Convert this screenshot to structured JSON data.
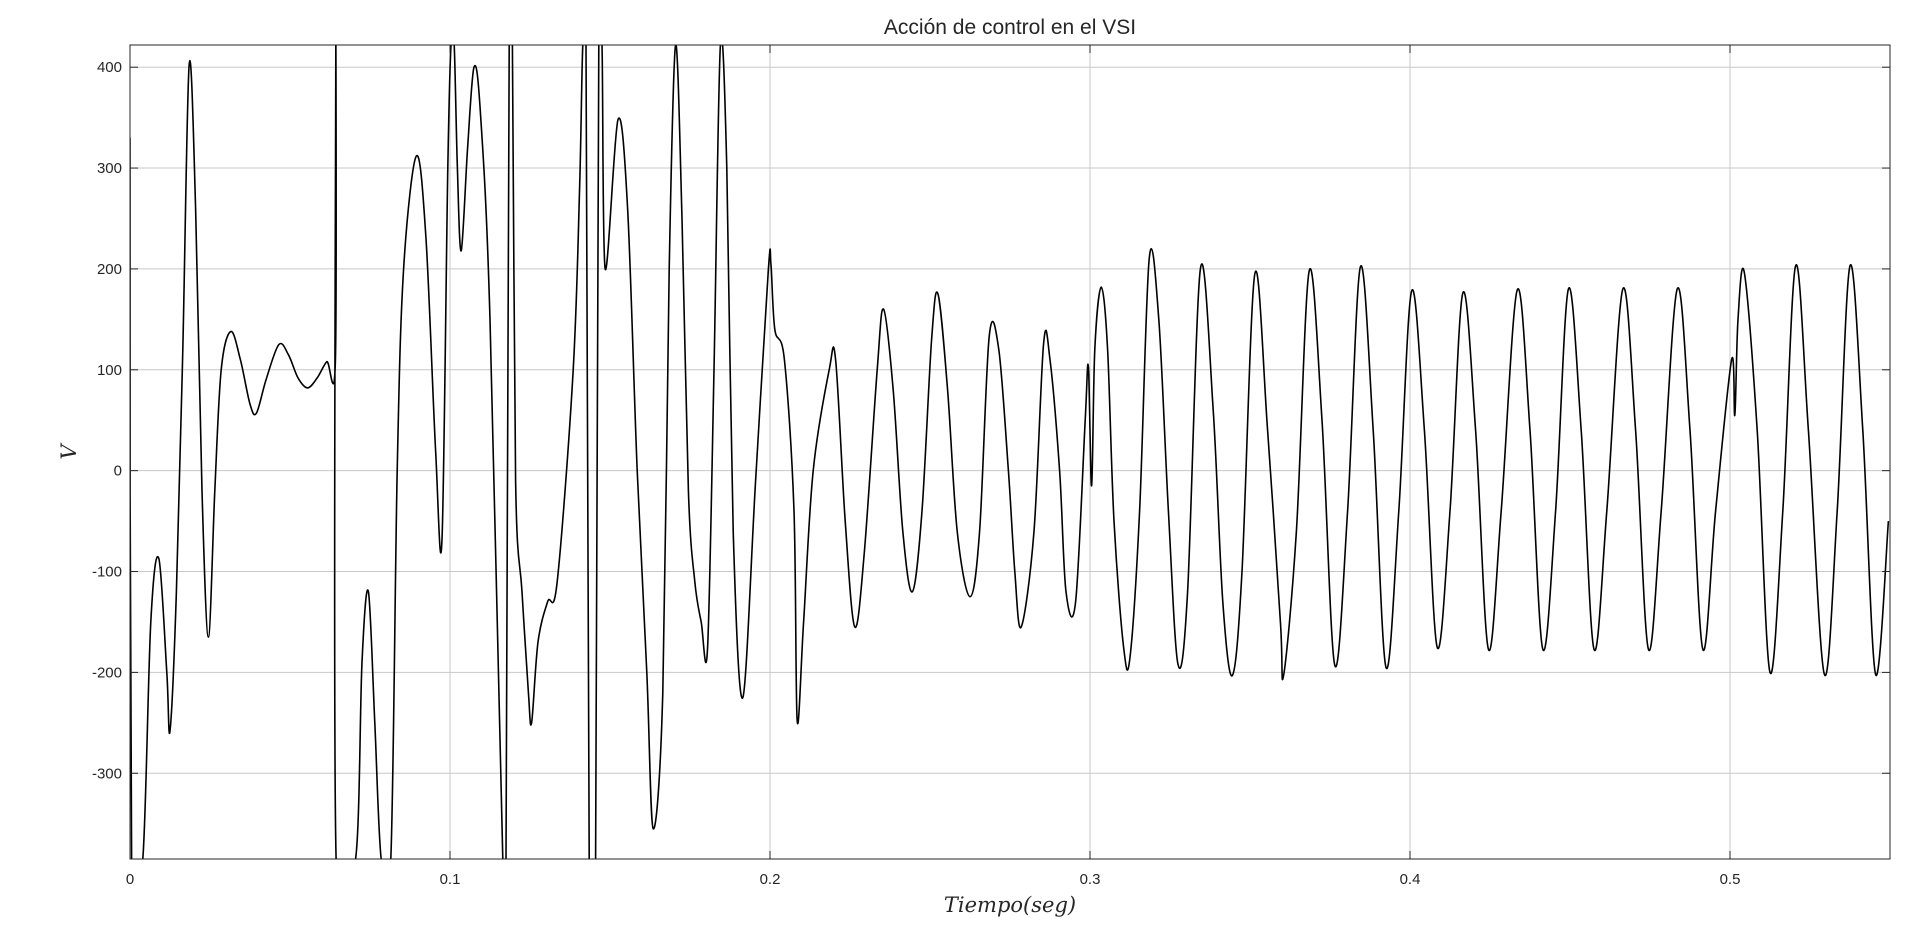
{
  "chart_data": {
    "type": "line",
    "title": "Acción de control en el VSI",
    "xlabel": "Tiempo(seg)",
    "ylabel": "V",
    "xlim": [
      0,
      0.55
    ],
    "ylim": [
      -385,
      422
    ],
    "grid": true,
    "xticks": [
      0,
      0.1,
      0.2,
      0.3,
      0.4,
      0.5
    ],
    "xtick_labels": [
      "0",
      "0.1",
      "0.2",
      "0.3",
      "0.4",
      "0.5"
    ],
    "yticks": [
      -300,
      -200,
      -100,
      0,
      100,
      200,
      300,
      400
    ],
    "ytick_labels": [
      "-300",
      "-200",
      "-100",
      "0",
      "100",
      "200",
      "300",
      "400"
    ],
    "line_color": "#000000",
    "grid_color": "#c8c8c8",
    "series": [
      {
        "points": [
          [
            0,
            330
          ],
          [
            0.0005,
            -385
          ],
          [
            0.004,
            -385
          ],
          [
            0.0065,
            -150
          ],
          [
            0.009,
            -87
          ],
          [
            0.0115,
            -200
          ],
          [
            0.0125,
            -258
          ],
          [
            0.0145,
            -120
          ],
          [
            0.0165,
            120
          ],
          [
            0.0185,
            403
          ],
          [
            0.0205,
            260
          ],
          [
            0.0225,
            -20
          ],
          [
            0.0245,
            -165
          ],
          [
            0.0265,
            -20
          ],
          [
            0.0285,
            100
          ],
          [
            0.0315,
            138
          ],
          [
            0.0345,
            110
          ],
          [
            0.0375,
            66
          ],
          [
            0.0395,
            57
          ],
          [
            0.0425,
            90
          ],
          [
            0.0465,
            125
          ],
          [
            0.0495,
            115
          ],
          [
            0.0525,
            92
          ],
          [
            0.0555,
            82
          ],
          [
            0.0585,
            92
          ],
          [
            0.0615,
            108
          ],
          [
            0.0642,
            109
          ],
          [
            0.0643,
            422
          ],
          [
            0.0644,
            -385
          ],
          [
            0.0705,
            -385
          ],
          [
            0.0725,
            -190
          ],
          [
            0.0745,
            -120
          ],
          [
            0.0765,
            -250
          ],
          [
            0.0785,
            -385
          ],
          [
            0.0815,
            -385
          ],
          [
            0.0835,
            0
          ],
          [
            0.0855,
            200
          ],
          [
            0.0895,
            312
          ],
          [
            0.0925,
            230
          ],
          [
            0.0955,
            20
          ],
          [
            0.0975,
            -68
          ],
          [
            0.0993,
            300
          ],
          [
            0.1003,
            422
          ],
          [
            0.1013,
            422
          ],
          [
            0.1023,
            300
          ],
          [
            0.1035,
            218
          ],
          [
            0.1055,
            320
          ],
          [
            0.1075,
            400
          ],
          [
            0.1095,
            355
          ],
          [
            0.1125,
            150
          ],
          [
            0.1165,
            -385
          ],
          [
            0.1175,
            -385
          ],
          [
            0.1185,
            422
          ],
          [
            0.1195,
            422
          ],
          [
            0.1205,
            -10
          ],
          [
            0.1225,
            -120
          ],
          [
            0.1245,
            -220
          ],
          [
            0.1255,
            -250
          ],
          [
            0.1275,
            -170
          ],
          [
            0.1305,
            -130
          ],
          [
            0.1335,
            -110
          ],
          [
            0.1385,
            100
          ],
          [
            0.1405,
            280
          ],
          [
            0.1415,
            422
          ],
          [
            0.1425,
            422
          ],
          [
            0.1435,
            -385
          ],
          [
            0.1445,
            -385
          ],
          [
            0.1455,
            -385
          ],
          [
            0.1465,
            422
          ],
          [
            0.1475,
            422
          ],
          [
            0.1485,
            200
          ],
          [
            0.1525,
            348
          ],
          [
            0.1555,
            260
          ],
          [
            0.1585,
            0
          ],
          [
            0.1615,
            -200
          ],
          [
            0.1635,
            -355
          ],
          [
            0.1665,
            -220
          ],
          [
            0.1685,
            200
          ],
          [
            0.1705,
            422
          ],
          [
            0.1725,
            250
          ],
          [
            0.1745,
            -20
          ],
          [
            0.1765,
            -110
          ],
          [
            0.1785,
            -150
          ],
          [
            0.1805,
            -175
          ],
          [
            0.1825,
            100
          ],
          [
            0.1845,
            422
          ],
          [
            0.1865,
            300
          ],
          [
            0.1885,
            -60
          ],
          [
            0.1915,
            -225
          ],
          [
            0.1955,
            -10
          ],
          [
            0.1995,
            200
          ],
          [
            0.2003,
            204
          ],
          [
            0.2015,
            140
          ],
          [
            0.2045,
            110
          ],
          [
            0.2075,
            -40
          ],
          [
            0.2085,
            -248
          ],
          [
            0.2105,
            -150
          ],
          [
            0.2135,
            0
          ],
          [
            0.2185,
            100
          ],
          [
            0.2205,
            110
          ],
          [
            0.2235,
            -50
          ],
          [
            0.2265,
            -155
          ],
          [
            0.2295,
            -80
          ],
          [
            0.2335,
            100
          ],
          [
            0.2355,
            160
          ],
          [
            0.2385,
            80
          ],
          [
            0.2415,
            -60
          ],
          [
            0.2445,
            -120
          ],
          [
            0.2475,
            -40
          ],
          [
            0.2505,
            130
          ],
          [
            0.2525,
            175
          ],
          [
            0.2555,
            80
          ],
          [
            0.2585,
            -60
          ],
          [
            0.2625,
            -125
          ],
          [
            0.2655,
            -60
          ],
          [
            0.2685,
            133
          ],
          [
            0.2715,
            120
          ],
          [
            0.2745,
            0
          ],
          [
            0.2765,
            -100
          ],
          [
            0.2785,
            -155
          ],
          [
            0.2825,
            -60
          ],
          [
            0.2855,
            126
          ],
          [
            0.2875,
            110
          ],
          [
            0.2905,
            0
          ],
          [
            0.2925,
            -120
          ],
          [
            0.2955,
            -130
          ],
          [
            0.2985,
            50
          ],
          [
            0.2995,
            103
          ],
          [
            0.3005,
            -15
          ],
          [
            0.3015,
            120
          ],
          [
            0.3035,
            182
          ],
          [
            0.3055,
            120
          ],
          [
            0.3075,
            -50
          ],
          [
            0.3105,
            -175
          ],
          [
            0.3125,
            -185
          ],
          [
            0.3155,
            -40
          ],
          [
            0.3185,
            210
          ],
          [
            0.3215,
            150
          ],
          [
            0.3245,
            -40
          ],
          [
            0.3275,
            -192
          ],
          [
            0.3305,
            -120
          ],
          [
            0.3345,
            200
          ],
          [
            0.3385,
            60
          ],
          [
            0.3415,
            -130
          ],
          [
            0.3445,
            -203
          ],
          [
            0.3475,
            -100
          ],
          [
            0.3515,
            195
          ],
          [
            0.3555,
            40
          ],
          [
            0.3595,
            -150
          ],
          [
            0.3605,
            -203
          ],
          [
            0.3645,
            -60
          ],
          [
            0.3685,
            198
          ],
          [
            0.3725,
            50
          ],
          [
            0.3765,
            -193
          ],
          [
            0.3805,
            -40
          ],
          [
            0.3845,
            202
          ],
          [
            0.3885,
            40
          ],
          [
            0.3925,
            -195
          ],
          [
            0.3965,
            -40
          ],
          [
            0.4005,
            178
          ],
          [
            0.4045,
            40
          ],
          [
            0.4085,
            -175
          ],
          [
            0.4125,
            -40
          ],
          [
            0.4165,
            176
          ],
          [
            0.4205,
            40
          ],
          [
            0.4245,
            -177
          ],
          [
            0.4285,
            -40
          ],
          [
            0.4335,
            179
          ],
          [
            0.4375,
            40
          ],
          [
            0.4415,
            -177
          ],
          [
            0.4455,
            -40
          ],
          [
            0.4495,
            180
          ],
          [
            0.4535,
            40
          ],
          [
            0.4575,
            -177
          ],
          [
            0.4615,
            -40
          ],
          [
            0.4665,
            180
          ],
          [
            0.4705,
            40
          ],
          [
            0.4745,
            -177
          ],
          [
            0.4785,
            -40
          ],
          [
            0.4835,
            180
          ],
          [
            0.4875,
            40
          ],
          [
            0.4915,
            -177
          ],
          [
            0.4955,
            -40
          ],
          [
            0.5005,
            110
          ],
          [
            0.5015,
            55
          ],
          [
            0.5025,
            150
          ],
          [
            0.5045,
            196
          ],
          [
            0.5085,
            40
          ],
          [
            0.5125,
            -200
          ],
          [
            0.5165,
            -40
          ],
          [
            0.5205,
            203
          ],
          [
            0.5245,
            40
          ],
          [
            0.5295,
            -202
          ],
          [
            0.5335,
            -40
          ],
          [
            0.5375,
            203
          ],
          [
            0.5415,
            40
          ],
          [
            0.5455,
            -202
          ],
          [
            0.5495,
            -50
          ]
        ]
      }
    ]
  }
}
